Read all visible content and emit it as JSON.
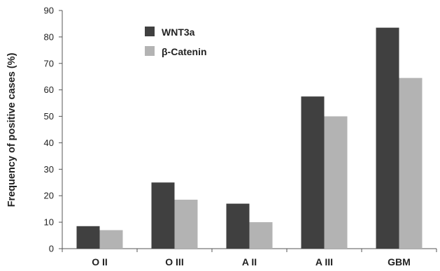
{
  "chart_data": {
    "type": "bar",
    "categories": [
      "O II",
      "O III",
      "A II",
      "A III",
      "GBM"
    ],
    "series": [
      {
        "name": "WNT3a",
        "values": [
          8.5,
          25,
          17,
          57.5,
          83.5
        ],
        "color": "#404040"
      },
      {
        "name": "β-Catenin",
        "values": [
          7,
          18.5,
          10,
          50,
          64.5
        ],
        "color": "#b3b3b3"
      }
    ],
    "ylabel": "Frequency of positive cases (%)",
    "xlabel": "",
    "ylim": [
      0,
      90
    ],
    "yticks": [
      0,
      10,
      20,
      30,
      40,
      50,
      60,
      70,
      80,
      90
    ],
    "grid": false,
    "legend_position": "top-left"
  }
}
